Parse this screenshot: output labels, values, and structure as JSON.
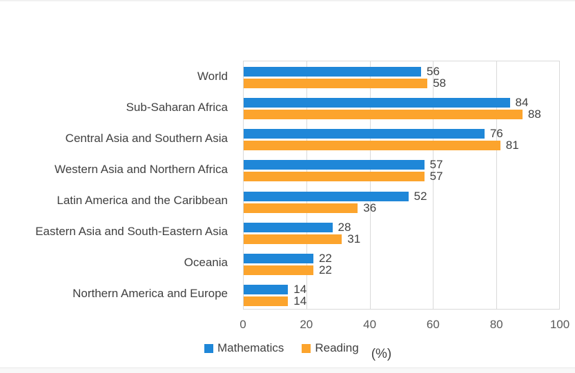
{
  "chart_data": {
    "type": "bar",
    "orientation": "horizontal",
    "categories": [
      "World",
      "Sub-Saharan Africa",
      "Central Asia and Southern Asia",
      "Western Asia and Northern Africa",
      "Latin America and the Caribbean",
      "Eastern Asia and South-Eastern Asia",
      "Oceania",
      "Northern America and Europe"
    ],
    "series": [
      {
        "name": "Mathematics",
        "color": "#1F87D8",
        "values": [
          56,
          84,
          76,
          57,
          52,
          28,
          22,
          14
        ]
      },
      {
        "name": "Reading",
        "color": "#FCA42D",
        "values": [
          58,
          88,
          81,
          57,
          36,
          31,
          22,
          14
        ]
      }
    ],
    "x_axis": {
      "min": 0,
      "max": 100,
      "ticks": [
        0,
        20,
        40,
        60,
        80,
        100
      ],
      "unit_label": "(%)"
    },
    "grid": true,
    "legend_position": "bottom",
    "data_labels": "outside-end",
    "colors": {
      "gridline": "#D9D9D9",
      "plot_border": "#D9D9D9",
      "category_label": "#404040",
      "value_label": "#404040",
      "tick_label": "#595959",
      "legend_label": "#404040"
    }
  }
}
